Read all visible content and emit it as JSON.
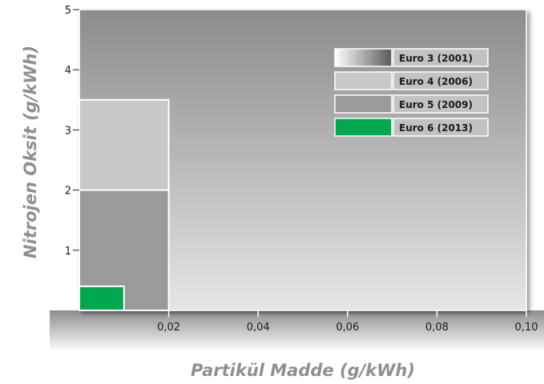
{
  "chart_data": {
    "type": "area",
    "xlabel": "Partikül Madde (g/kWh)",
    "ylabel": "Nitrojen Oksit (g/kWh)",
    "xlim": [
      0,
      0.1
    ],
    "ylim": [
      0,
      5
    ],
    "x_ticks": [
      {
        "value": 0.02,
        "label": "0,02"
      },
      {
        "value": 0.04,
        "label": "0,04"
      },
      {
        "value": 0.06,
        "label": "0,06"
      },
      {
        "value": 0.08,
        "label": "0,08"
      },
      {
        "value": 0.1,
        "label": "0,10"
      }
    ],
    "y_ticks": [
      {
        "value": 1,
        "label": "1"
      },
      {
        "value": 2,
        "label": "2"
      },
      {
        "value": 3,
        "label": "3"
      },
      {
        "value": 4,
        "label": "4"
      },
      {
        "value": 5,
        "label": "5"
      }
    ],
    "grid": false,
    "legend_position": "top-right",
    "series": [
      {
        "name": "Euro 3 (2001)",
        "pm_limit": 0.1,
        "nox_limit": 5.0,
        "color": "#a8a8a8"
      },
      {
        "name": "Euro 4 (2006)",
        "pm_limit": 0.02,
        "nox_limit": 3.5,
        "color": "#c8c8c8"
      },
      {
        "name": "Euro 5 (2009)",
        "pm_limit": 0.02,
        "nox_limit": 2.0,
        "color": "#9a9a9a"
      },
      {
        "name": "Euro 6 (2013)",
        "pm_limit": 0.01,
        "nox_limit": 0.4,
        "color": "#00a94f"
      }
    ]
  }
}
